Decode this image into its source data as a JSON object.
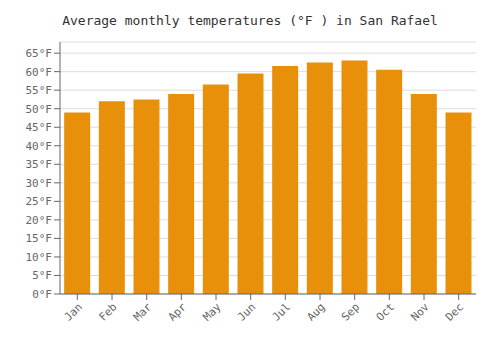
{
  "chart_data": {
    "type": "bar",
    "title": "Average monthly temperatures (°F ) in San Rafael",
    "categories": [
      "Jan",
      "Feb",
      "Mar",
      "Apr",
      "May",
      "Jun",
      "Jul",
      "Aug",
      "Sep",
      "Oct",
      "Nov",
      "Dec"
    ],
    "values": [
      49,
      52,
      52.5,
      54,
      56.5,
      59.5,
      61.5,
      62.5,
      63,
      60.5,
      54,
      49
    ],
    "color": "#E8900A",
    "ylim": [
      0,
      68
    ],
    "yticks": [
      {
        "value": 0,
        "label": "0°F"
      },
      {
        "value": 5,
        "label": "5°F"
      },
      {
        "value": 10,
        "label": "10°F"
      },
      {
        "value": 15,
        "label": "15°F"
      },
      {
        "value": 20,
        "label": "20°F"
      },
      {
        "value": 25,
        "label": "25°F"
      },
      {
        "value": 30,
        "label": "30°F"
      },
      {
        "value": 35,
        "label": "35°F"
      },
      {
        "value": 40,
        "label": "40°F"
      },
      {
        "value": 45,
        "label": "45°F"
      },
      {
        "value": 50,
        "label": "50°F"
      },
      {
        "value": 55,
        "label": "55°F"
      },
      {
        "value": 60,
        "label": "60°F"
      },
      {
        "value": 65,
        "label": "65°F"
      }
    ],
    "grid": true
  }
}
